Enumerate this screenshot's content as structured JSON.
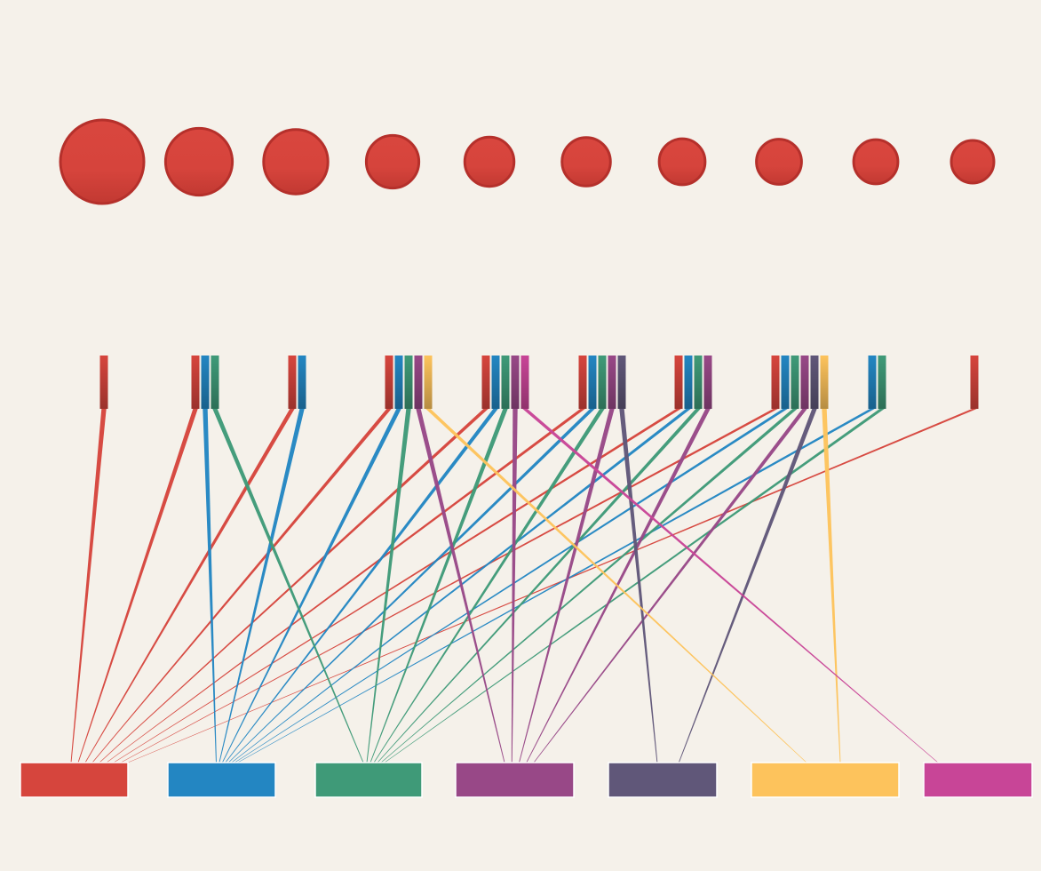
{
  "colors": {
    "background": "#f5f1ea",
    "node_fill": "#d6453d",
    "node_stroke": "#b5302b",
    "categories": [
      "#d6453d",
      "#2386c2",
      "#3f9a78",
      "#984887",
      "#605779",
      "#fdc35c",
      "#c84597"
    ]
  },
  "categories": [
    {
      "id": "c0",
      "color": "#d6453d"
    },
    {
      "id": "c1",
      "color": "#2386c2"
    },
    {
      "id": "c2",
      "color": "#3f9a78"
    },
    {
      "id": "c3",
      "color": "#984887"
    },
    {
      "id": "c4",
      "color": "#605779"
    },
    {
      "id": "c5",
      "color": "#fdc35c"
    },
    {
      "id": "c6",
      "color": "#c84597"
    }
  ],
  "nodes": [
    {
      "id": "n1",
      "size": 1.0,
      "links": [
        0
      ]
    },
    {
      "id": "n2",
      "size": 0.8,
      "links": [
        0,
        1,
        2
      ]
    },
    {
      "id": "n3",
      "size": 0.77,
      "links": [
        0,
        1
      ]
    },
    {
      "id": "n4",
      "size": 0.63,
      "links": [
        0,
        1,
        2,
        3,
        5
      ]
    },
    {
      "id": "n5",
      "size": 0.59,
      "links": [
        0,
        1,
        2,
        3,
        6
      ]
    },
    {
      "id": "n6",
      "size": 0.58,
      "links": [
        0,
        1,
        2,
        3,
        4
      ]
    },
    {
      "id": "n7",
      "size": 0.55,
      "links": [
        0,
        1,
        2,
        3
      ]
    },
    {
      "id": "n8",
      "size": 0.54,
      "links": [
        0,
        1,
        2,
        3,
        4,
        5
      ]
    },
    {
      "id": "n9",
      "size": 0.53,
      "links": [
        1,
        2
      ]
    },
    {
      "id": "n10",
      "size": 0.51,
      "links": [
        0
      ]
    }
  ]
}
